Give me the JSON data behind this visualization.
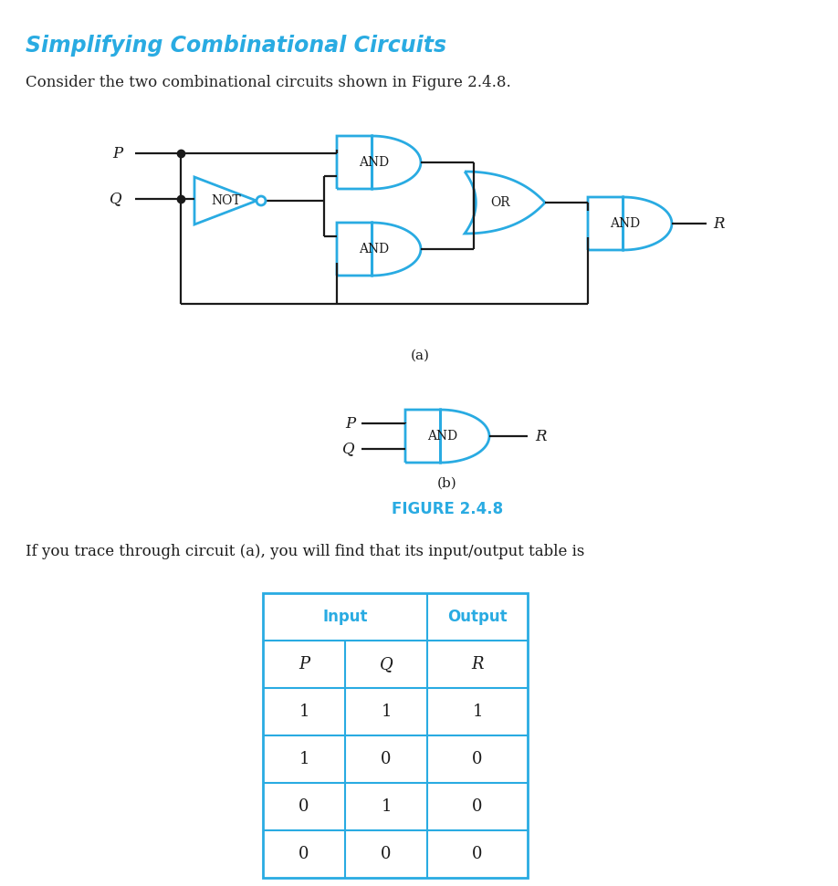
{
  "title": "Simplifying Combinational Circuits",
  "title_color": "#29ABE2",
  "subtitle": "Consider the two combinational circuits shown in Figure 2.4.8.",
  "subtitle_color": "#222222",
  "figure_label": "FIGURE 2.4.8",
  "figure_label_color": "#29ABE2",
  "caption_a": "(a)",
  "caption_b": "(b)",
  "gate_color": "#29ABE2",
  "wire_color": "#1a1a1a",
  "text_color": "#1a1a1a",
  "body_text": "If you trace through circuit (a), you will find that its input/output table is",
  "table_header_color": "#29ABE2",
  "table_border_color": "#29ABE2",
  "table_data": [
    [
      "1",
      "1",
      "1"
    ],
    [
      "1",
      "0",
      "0"
    ],
    [
      "0",
      "1",
      "0"
    ],
    [
      "0",
      "0",
      "0"
    ]
  ]
}
